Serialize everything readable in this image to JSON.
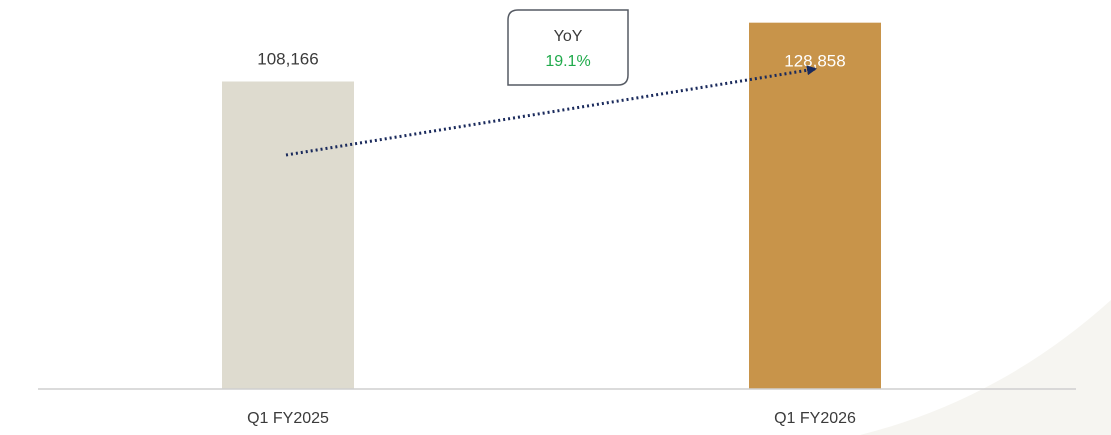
{
  "chart_data": {
    "type": "bar",
    "categories": [
      "Q1 FY2025",
      "Q1 FY2026"
    ],
    "values": [
      108166,
      128858
    ],
    "value_labels": [
      "108,166",
      "128,858"
    ],
    "bar_colors": [
      "#dedbcf",
      "#c8944a"
    ],
    "value_label_colors": [
      "#3b3b3b",
      "#ffffff"
    ],
    "value_label_position": [
      "above",
      "inside"
    ],
    "ylim": [
      0,
      140000
    ],
    "grid": false,
    "title": "",
    "xlabel": "",
    "ylabel": "",
    "annotation": {
      "title": "YoY",
      "value": "19.1%",
      "value_color": "#1faa4b",
      "arrow_color": "#1a2a5c",
      "arrow_style": "dotted"
    }
  }
}
